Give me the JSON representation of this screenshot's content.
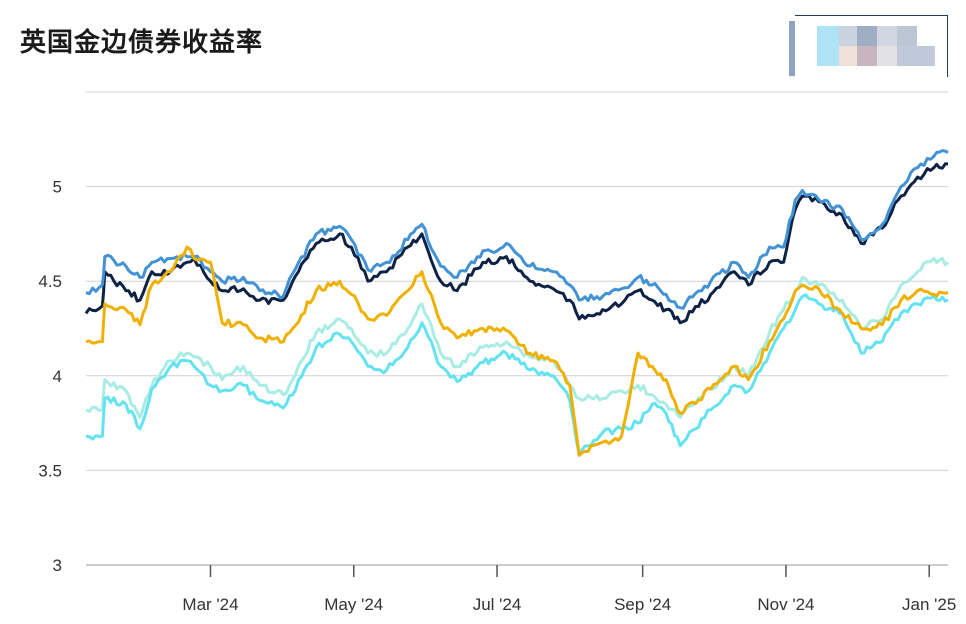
{
  "chart_data": {
    "type": "line",
    "title": "英国金边债券收益率",
    "ylim": [
      3,
      5.5
    ],
    "y_ticks": [
      3,
      3.5,
      4,
      4.5,
      5
    ],
    "x_range": [
      "2024-01-08",
      "2025-01-09"
    ],
    "x_ticks": [
      {
        "date": "2024-03-01",
        "label": "Mar '24"
      },
      {
        "date": "2024-05-01",
        "label": "May '24"
      },
      {
        "date": "2024-07-01",
        "label": "Jul '24"
      },
      {
        "date": "2024-09-01",
        "label": "Sep '24"
      },
      {
        "date": "2024-11-01",
        "label": "Nov '24"
      },
      {
        "date": "2025-01-01",
        "label": "Jan '25"
      }
    ],
    "grid": true,
    "legend": "top-right",
    "legend_colors": [
      "#8fa4bf",
      "#aee3f5",
      "#c9d2de",
      "#a0aec3",
      "#d0d7e2",
      "#bcc6d5",
      "#efe0da",
      "#c9b5be",
      "#e1e1e6",
      "#bfc9d8"
    ],
    "series": [
      {
        "color": "#0d2244",
        "points": [
          [
            "2024-01-08",
            4.33
          ],
          [
            "2024-01-15",
            4.37
          ],
          [
            "2024-01-16",
            4.55
          ],
          [
            "2024-01-25",
            4.45
          ],
          [
            "2024-01-31",
            4.4
          ],
          [
            "2024-02-05",
            4.55
          ],
          [
            "2024-02-13",
            4.55
          ],
          [
            "2024-02-20",
            4.6
          ],
          [
            "2024-02-23",
            4.62
          ],
          [
            "2024-03-01",
            4.5
          ],
          [
            "2024-03-06",
            4.45
          ],
          [
            "2024-03-15",
            4.46
          ],
          [
            "2024-03-22",
            4.4
          ],
          [
            "2024-04-01",
            4.4
          ],
          [
            "2024-04-05",
            4.5
          ],
          [
            "2024-04-15",
            4.7
          ],
          [
            "2024-04-25",
            4.75
          ],
          [
            "2024-04-30",
            4.68
          ],
          [
            "2024-05-07",
            4.5
          ],
          [
            "2024-05-15",
            4.55
          ],
          [
            "2024-05-24",
            4.68
          ],
          [
            "2024-05-30",
            4.75
          ],
          [
            "2024-06-07",
            4.5
          ],
          [
            "2024-06-14",
            4.45
          ],
          [
            "2024-06-25",
            4.6
          ],
          [
            "2024-07-01",
            4.6
          ],
          [
            "2024-07-05",
            4.63
          ],
          [
            "2024-07-15",
            4.5
          ],
          [
            "2024-07-25",
            4.46
          ],
          [
            "2024-08-01",
            4.4
          ],
          [
            "2024-08-05",
            4.3
          ],
          [
            "2024-08-15",
            4.35
          ],
          [
            "2024-08-23",
            4.38
          ],
          [
            "2024-08-30",
            4.45
          ],
          [
            "2024-09-05",
            4.4
          ],
          [
            "2024-09-11",
            4.35
          ],
          [
            "2024-09-17",
            4.28
          ],
          [
            "2024-09-30",
            4.43
          ],
          [
            "2024-10-10",
            4.55
          ],
          [
            "2024-10-16",
            4.48
          ],
          [
            "2024-10-25",
            4.6
          ],
          [
            "2024-10-31",
            4.6
          ],
          [
            "2024-11-05",
            4.88
          ],
          [
            "2024-11-08",
            4.95
          ],
          [
            "2024-11-15",
            4.92
          ],
          [
            "2024-11-25",
            4.85
          ],
          [
            "2024-12-03",
            4.7
          ],
          [
            "2024-12-12",
            4.78
          ],
          [
            "2024-12-20",
            4.95
          ],
          [
            "2024-12-27",
            5.05
          ],
          [
            "2025-01-03",
            5.1
          ],
          [
            "2025-01-09",
            5.12
          ]
        ]
      },
      {
        "color": "#4392d4",
        "points": [
          [
            "2024-01-08",
            4.44
          ],
          [
            "2024-01-15",
            4.48
          ],
          [
            "2024-01-16",
            4.63
          ],
          [
            "2024-01-25",
            4.58
          ],
          [
            "2024-01-31",
            4.52
          ],
          [
            "2024-02-05",
            4.6
          ],
          [
            "2024-02-13",
            4.62
          ],
          [
            "2024-02-20",
            4.63
          ],
          [
            "2024-02-23",
            4.63
          ],
          [
            "2024-03-01",
            4.55
          ],
          [
            "2024-03-06",
            4.5
          ],
          [
            "2024-03-15",
            4.52
          ],
          [
            "2024-03-22",
            4.45
          ],
          [
            "2024-04-01",
            4.42
          ],
          [
            "2024-04-05",
            4.54
          ],
          [
            "2024-04-15",
            4.75
          ],
          [
            "2024-04-25",
            4.79
          ],
          [
            "2024-04-30",
            4.72
          ],
          [
            "2024-05-07",
            4.56
          ],
          [
            "2024-05-15",
            4.6
          ],
          [
            "2024-05-24",
            4.72
          ],
          [
            "2024-05-30",
            4.8
          ],
          [
            "2024-06-07",
            4.58
          ],
          [
            "2024-06-14",
            4.52
          ],
          [
            "2024-06-25",
            4.66
          ],
          [
            "2024-07-01",
            4.66
          ],
          [
            "2024-07-05",
            4.7
          ],
          [
            "2024-07-15",
            4.58
          ],
          [
            "2024-07-25",
            4.55
          ],
          [
            "2024-08-01",
            4.48
          ],
          [
            "2024-08-05",
            4.4
          ],
          [
            "2024-08-15",
            4.42
          ],
          [
            "2024-08-23",
            4.46
          ],
          [
            "2024-08-30",
            4.52
          ],
          [
            "2024-09-05",
            4.48
          ],
          [
            "2024-09-11",
            4.43
          ],
          [
            "2024-09-17",
            4.36
          ],
          [
            "2024-09-30",
            4.5
          ],
          [
            "2024-10-10",
            4.6
          ],
          [
            "2024-10-16",
            4.52
          ],
          [
            "2024-10-25",
            4.68
          ],
          [
            "2024-10-31",
            4.68
          ],
          [
            "2024-11-05",
            4.93
          ],
          [
            "2024-11-08",
            4.98
          ],
          [
            "2024-11-15",
            4.93
          ],
          [
            "2024-11-25",
            4.88
          ],
          [
            "2024-12-03",
            4.72
          ],
          [
            "2024-12-12",
            4.8
          ],
          [
            "2024-12-20",
            5.0
          ],
          [
            "2024-12-27",
            5.1
          ],
          [
            "2025-01-03",
            5.16
          ],
          [
            "2025-01-09",
            5.18
          ]
        ]
      },
      {
        "color": "#a8ece3",
        "points": [
          [
            "2024-01-08",
            3.82
          ],
          [
            "2024-01-15",
            3.82
          ],
          [
            "2024-01-16",
            3.98
          ],
          [
            "2024-01-25",
            3.92
          ],
          [
            "2024-01-31",
            3.78
          ],
          [
            "2024-02-05",
            3.95
          ],
          [
            "2024-02-13",
            4.08
          ],
          [
            "2024-02-20",
            4.12
          ],
          [
            "2024-02-23",
            4.1
          ],
          [
            "2024-03-01",
            4.05
          ],
          [
            "2024-03-06",
            3.98
          ],
          [
            "2024-03-15",
            4.05
          ],
          [
            "2024-03-22",
            3.95
          ],
          [
            "2024-04-01",
            3.9
          ],
          [
            "2024-04-05",
            3.98
          ],
          [
            "2024-04-15",
            4.23
          ],
          [
            "2024-04-25",
            4.3
          ],
          [
            "2024-04-30",
            4.25
          ],
          [
            "2024-05-07",
            4.12
          ],
          [
            "2024-05-15",
            4.12
          ],
          [
            "2024-05-24",
            4.25
          ],
          [
            "2024-05-30",
            4.38
          ],
          [
            "2024-06-07",
            4.12
          ],
          [
            "2024-06-14",
            4.05
          ],
          [
            "2024-06-25",
            4.15
          ],
          [
            "2024-07-01",
            4.17
          ],
          [
            "2024-07-05",
            4.18
          ],
          [
            "2024-07-15",
            4.1
          ],
          [
            "2024-07-25",
            4.08
          ],
          [
            "2024-08-01",
            3.95
          ],
          [
            "2024-08-05",
            3.88
          ],
          [
            "2024-08-15",
            3.88
          ],
          [
            "2024-08-23",
            3.92
          ],
          [
            "2024-08-30",
            3.95
          ],
          [
            "2024-09-05",
            3.9
          ],
          [
            "2024-09-11",
            3.85
          ],
          [
            "2024-09-17",
            3.78
          ],
          [
            "2024-09-30",
            3.93
          ],
          [
            "2024-10-10",
            4.05
          ],
          [
            "2024-10-16",
            4.0
          ],
          [
            "2024-10-25",
            4.23
          ],
          [
            "2024-10-31",
            4.35
          ],
          [
            "2024-11-05",
            4.45
          ],
          [
            "2024-11-08",
            4.52
          ],
          [
            "2024-11-15",
            4.48
          ],
          [
            "2024-11-25",
            4.4
          ],
          [
            "2024-12-03",
            4.25
          ],
          [
            "2024-12-12",
            4.3
          ],
          [
            "2024-12-20",
            4.48
          ],
          [
            "2024-12-27",
            4.55
          ],
          [
            "2025-01-03",
            4.62
          ],
          [
            "2025-01-09",
            4.6
          ]
        ]
      },
      {
        "color": "#63e2f2",
        "points": [
          [
            "2024-01-08",
            3.68
          ],
          [
            "2024-01-15",
            3.68
          ],
          [
            "2024-01-16",
            3.88
          ],
          [
            "2024-01-25",
            3.85
          ],
          [
            "2024-01-31",
            3.72
          ],
          [
            "2024-02-05",
            3.93
          ],
          [
            "2024-02-13",
            4.05
          ],
          [
            "2024-02-20",
            4.08
          ],
          [
            "2024-02-23",
            4.05
          ],
          [
            "2024-03-01",
            3.95
          ],
          [
            "2024-03-06",
            3.92
          ],
          [
            "2024-03-15",
            3.95
          ],
          [
            "2024-03-22",
            3.87
          ],
          [
            "2024-04-01",
            3.83
          ],
          [
            "2024-04-05",
            3.9
          ],
          [
            "2024-04-15",
            4.15
          ],
          [
            "2024-04-25",
            4.22
          ],
          [
            "2024-04-30",
            4.18
          ],
          [
            "2024-05-07",
            4.05
          ],
          [
            "2024-05-15",
            4.03
          ],
          [
            "2024-05-24",
            4.15
          ],
          [
            "2024-05-30",
            4.28
          ],
          [
            "2024-06-07",
            4.05
          ],
          [
            "2024-06-14",
            3.97
          ],
          [
            "2024-06-25",
            4.07
          ],
          [
            "2024-07-01",
            4.1
          ],
          [
            "2024-07-05",
            4.12
          ],
          [
            "2024-07-15",
            4.03
          ],
          [
            "2024-07-25",
            4.0
          ],
          [
            "2024-08-01",
            3.87
          ],
          [
            "2024-08-05",
            3.58
          ],
          [
            "2024-08-15",
            3.7
          ],
          [
            "2024-08-23",
            3.72
          ],
          [
            "2024-08-30",
            3.75
          ],
          [
            "2024-09-05",
            3.85
          ],
          [
            "2024-09-11",
            3.8
          ],
          [
            "2024-09-17",
            3.63
          ],
          [
            "2024-09-30",
            3.82
          ],
          [
            "2024-10-10",
            3.95
          ],
          [
            "2024-10-16",
            3.92
          ],
          [
            "2024-10-25",
            4.12
          ],
          [
            "2024-10-31",
            4.25
          ],
          [
            "2024-11-05",
            4.35
          ],
          [
            "2024-11-08",
            4.42
          ],
          [
            "2024-11-15",
            4.38
          ],
          [
            "2024-11-25",
            4.33
          ],
          [
            "2024-12-03",
            4.12
          ],
          [
            "2024-12-12",
            4.18
          ],
          [
            "2024-12-20",
            4.33
          ],
          [
            "2024-12-27",
            4.38
          ],
          [
            "2025-01-03",
            4.42
          ],
          [
            "2025-01-09",
            4.4
          ]
        ]
      },
      {
        "color": "#f0b000",
        "points": [
          [
            "2024-01-08",
            4.18
          ],
          [
            "2024-01-15",
            4.18
          ],
          [
            "2024-01-16",
            4.38
          ],
          [
            "2024-01-25",
            4.35
          ],
          [
            "2024-01-31",
            4.27
          ],
          [
            "2024-02-05",
            4.48
          ],
          [
            "2024-02-13",
            4.55
          ],
          [
            "2024-02-20",
            4.68
          ],
          [
            "2024-02-23",
            4.62
          ],
          [
            "2024-03-01",
            4.6
          ],
          [
            "2024-03-06",
            4.28
          ],
          [
            "2024-03-15",
            4.27
          ],
          [
            "2024-03-22",
            4.2
          ],
          [
            "2024-04-01",
            4.18
          ],
          [
            "2024-04-05",
            4.25
          ],
          [
            "2024-04-15",
            4.45
          ],
          [
            "2024-04-25",
            4.5
          ],
          [
            "2024-04-30",
            4.43
          ],
          [
            "2024-05-07",
            4.3
          ],
          [
            "2024-05-15",
            4.32
          ],
          [
            "2024-05-24",
            4.45
          ],
          [
            "2024-05-30",
            4.55
          ],
          [
            "2024-06-07",
            4.28
          ],
          [
            "2024-06-14",
            4.2
          ],
          [
            "2024-06-25",
            4.25
          ],
          [
            "2024-07-01",
            4.25
          ],
          [
            "2024-07-05",
            4.24
          ],
          [
            "2024-07-15",
            4.12
          ],
          [
            "2024-07-25",
            4.08
          ],
          [
            "2024-08-01",
            3.95
          ],
          [
            "2024-08-05",
            3.58
          ],
          [
            "2024-08-15",
            3.65
          ],
          [
            "2024-08-23",
            3.68
          ],
          [
            "2024-08-30",
            4.12
          ],
          [
            "2024-09-05",
            4.05
          ],
          [
            "2024-09-11",
            3.98
          ],
          [
            "2024-09-17",
            3.8
          ],
          [
            "2024-09-30",
            3.93
          ],
          [
            "2024-10-10",
            4.05
          ],
          [
            "2024-10-16",
            3.98
          ],
          [
            "2024-10-25",
            4.18
          ],
          [
            "2024-10-31",
            4.3
          ],
          [
            "2024-11-05",
            4.45
          ],
          [
            "2024-11-08",
            4.48
          ],
          [
            "2024-11-15",
            4.46
          ],
          [
            "2024-11-25",
            4.33
          ],
          [
            "2024-12-03",
            4.25
          ],
          [
            "2024-12-12",
            4.27
          ],
          [
            "2024-12-20",
            4.4
          ],
          [
            "2024-12-27",
            4.45
          ],
          [
            "2025-01-03",
            4.43
          ],
          [
            "2025-01-09",
            4.44
          ]
        ]
      }
    ]
  }
}
